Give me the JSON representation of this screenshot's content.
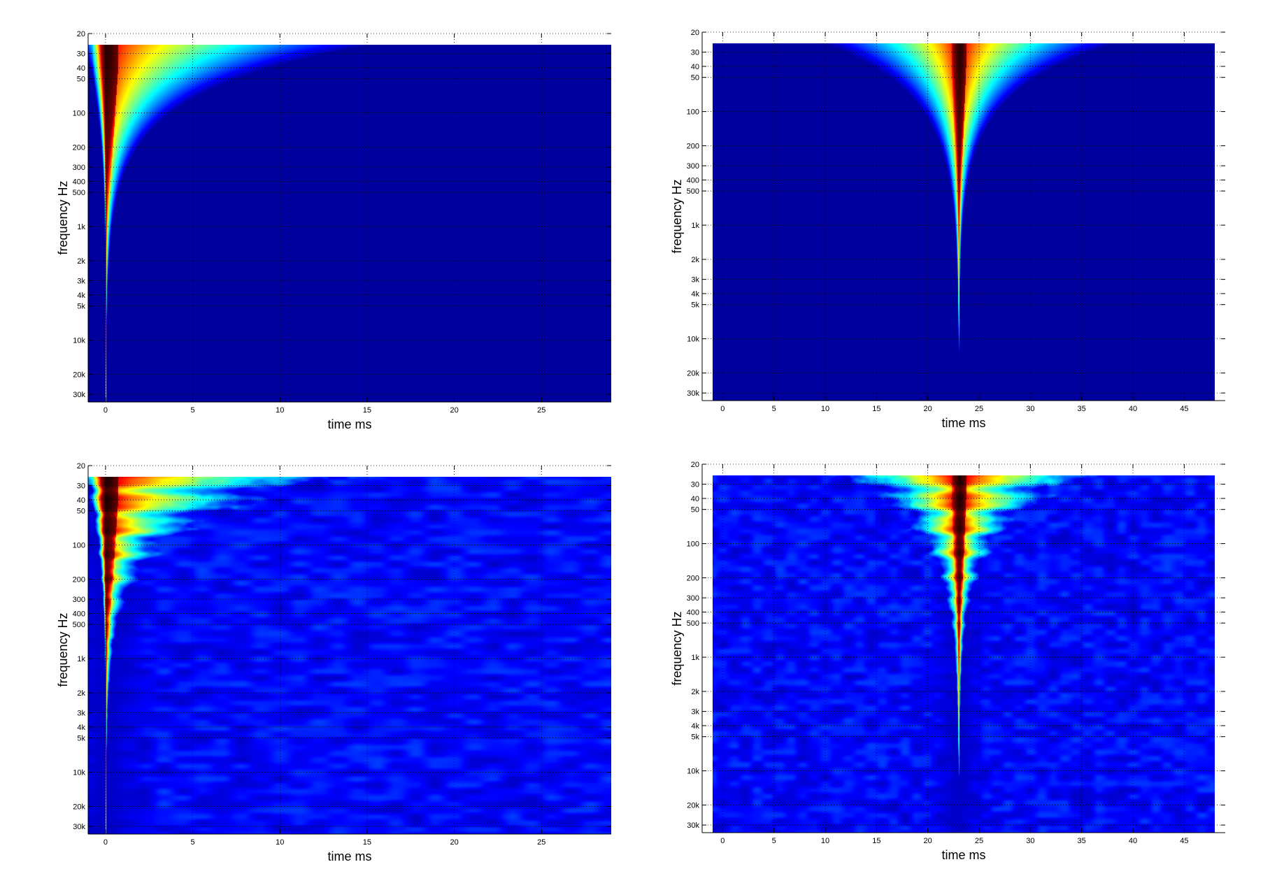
{
  "chart_data": [
    {
      "type": "heatmap",
      "variant": "smooth",
      "xlabel": "time   ms",
      "ylabel": "frequency   Hz",
      "xlim": [
        -1,
        29
      ],
      "ylim": [
        20,
        35000
      ],
      "yscale": "log",
      "xticks": [
        0,
        5,
        10,
        15,
        20,
        25
      ],
      "yticks": [
        20,
        30,
        40,
        50,
        100,
        200,
        300,
        400,
        500,
        1000,
        2000,
        3000,
        4000,
        5000,
        10000,
        20000,
        30000
      ],
      "yticklabels": [
        "20",
        "30",
        "40",
        "50",
        "100",
        "200",
        "300",
        "400",
        "500",
        "1k",
        "2k",
        "3k",
        "4k",
        "5k",
        "10k",
        "20k",
        "30k"
      ],
      "data_extent": {
        "t": [
          -1,
          29
        ],
        "f": [
          25,
          35000
        ]
      },
      "onset_ms": 0,
      "colormap": "jet",
      "grid": "dotted"
    },
    {
      "type": "heatmap",
      "variant": "smooth-symmetric",
      "xlabel": "time   ms",
      "ylabel": "frequency   Hz",
      "xlim": [
        -2,
        49
      ],
      "ylim": [
        20,
        35000
      ],
      "yscale": "log",
      "xticks": [
        0,
        5,
        10,
        15,
        20,
        25,
        30,
        35,
        40,
        45
      ],
      "yticks": [
        20,
        30,
        40,
        50,
        100,
        200,
        300,
        400,
        500,
        1000,
        2000,
        3000,
        4000,
        5000,
        10000,
        20000,
        30000
      ],
      "yticklabels": [
        "20",
        "30",
        "40",
        "50",
        "100",
        "200",
        "300",
        "400",
        "500",
        "1k",
        "2k",
        "3k",
        "4k",
        "5k",
        "10k",
        "20k",
        "30k"
      ],
      "data_extent": {
        "t": [
          -1,
          48
        ],
        "f": [
          25,
          35000
        ]
      },
      "onset_ms": 23,
      "colormap": "jet",
      "grid": "dotted"
    },
    {
      "type": "heatmap",
      "variant": "measured",
      "xlabel": "time   ms",
      "ylabel": "frequency   Hz",
      "xlim": [
        -1,
        29
      ],
      "ylim": [
        20,
        35000
      ],
      "yscale": "log",
      "xticks": [
        0,
        5,
        10,
        15,
        20,
        25
      ],
      "yticks": [
        20,
        30,
        40,
        50,
        100,
        200,
        300,
        400,
        500,
        1000,
        2000,
        3000,
        4000,
        5000,
        10000,
        20000,
        30000
      ],
      "yticklabels": [
        "20",
        "30",
        "40",
        "50",
        "100",
        "200",
        "300",
        "400",
        "500",
        "1k",
        "2k",
        "3k",
        "4k",
        "5k",
        "10k",
        "20k",
        "30k"
      ],
      "data_extent": {
        "t": [
          -1,
          29
        ],
        "f": [
          25,
          35000
        ]
      },
      "onset_ms": 0,
      "colormap": "jet",
      "grid": "dotted"
    },
    {
      "type": "heatmap",
      "variant": "measured-symmetric",
      "xlabel": "time   ms",
      "ylabel": "frequency   Hz",
      "xlim": [
        -2,
        49
      ],
      "ylim": [
        20,
        35000
      ],
      "yscale": "log",
      "xticks": [
        0,
        5,
        10,
        15,
        20,
        25,
        30,
        35,
        40,
        45
      ],
      "yticks": [
        20,
        30,
        40,
        50,
        100,
        200,
        300,
        400,
        500,
        1000,
        2000,
        3000,
        4000,
        5000,
        10000,
        20000,
        30000
      ],
      "yticklabels": [
        "20",
        "30",
        "40",
        "50",
        "100",
        "200",
        "300",
        "400",
        "500",
        "1k",
        "2k",
        "3k",
        "4k",
        "5k",
        "10k",
        "20k",
        "30k"
      ],
      "data_extent": {
        "t": [
          -1,
          48
        ],
        "f": [
          25,
          35000
        ]
      },
      "onset_ms": 23,
      "colormap": "jet",
      "grid": "dotted"
    }
  ]
}
